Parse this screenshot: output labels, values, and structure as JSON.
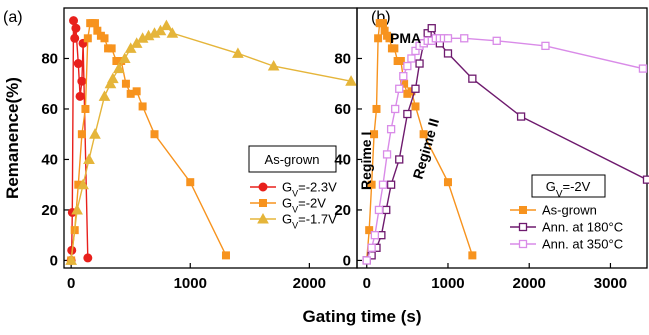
{
  "xlabel": "Gating time (s)",
  "ylabel": "Remanence(%)",
  "chart_data": [
    {
      "type": "line",
      "panel_label": "(a)",
      "xlim": [
        -60,
        2400
      ],
      "ylim": [
        -3,
        100
      ],
      "xticks": [
        0,
        1000,
        2000
      ],
      "yticks": [
        0,
        20,
        40,
        60,
        80
      ],
      "legend_title": "As-grown",
      "series": [
        {
          "name": "G_V=-2.3V",
          "name_sub": "V",
          "name_prefix": "G",
          "name_rest": "=-2.3V",
          "color": "#e8201c",
          "marker": "circle",
          "x": [
            0,
            5,
            10,
            20,
            30,
            40,
            60,
            75,
            90,
            100,
            140
          ],
          "y": [
            0,
            4,
            19,
            95,
            88,
            92,
            78,
            65,
            71,
            86,
            1
          ]
        },
        {
          "name": "G_V=-2V",
          "name_sub": "V",
          "name_prefix": "G",
          "name_rest": "=-2V",
          "color": "#f7931e",
          "marker": "square",
          "x": [
            0,
            30,
            60,
            90,
            120,
            140,
            160,
            180,
            200,
            220,
            250,
            280,
            310,
            340,
            380,
            420,
            460,
            500,
            550,
            600,
            700,
            1000,
            1300
          ],
          "y": [
            0,
            12,
            30,
            50,
            60,
            88,
            94,
            94,
            94,
            91,
            89,
            88,
            84,
            84,
            79,
            79,
            70,
            66,
            67,
            61,
            50,
            31,
            2
          ]
        },
        {
          "name": "G_V=-1.7V",
          "name_sub": "V",
          "name_prefix": "G",
          "name_rest": "=-1.7V",
          "color": "#e5b53a",
          "marker": "triangle",
          "x": [
            0,
            50,
            100,
            150,
            200,
            280,
            330,
            350,
            400,
            450,
            500,
            550,
            600,
            650,
            700,
            750,
            800,
            850,
            1400,
            1700,
            2350
          ],
          "y": [
            0,
            20,
            30,
            40,
            50,
            65,
            70,
            72,
            76,
            80,
            84,
            86,
            88,
            89,
            90,
            91,
            93,
            90,
            82,
            77,
            71
          ]
        }
      ]
    },
    {
      "type": "line",
      "panel_label": "(b)",
      "xlim": [
        -120,
        3450
      ],
      "ylim": [
        -3,
        100
      ],
      "xticks": [
        0,
        1000,
        2000,
        3000
      ],
      "yticks": [
        0,
        20,
        40,
        60,
        80
      ],
      "legend_title": "G_V=-2V",
      "legend_title_prefix": "G",
      "legend_title_sub": "V",
      "legend_title_rest": "=-2V",
      "annotations": [
        "PMA",
        "Regime I",
        "Regime II"
      ],
      "series": [
        {
          "name": "As-grown",
          "color": "#f7931e",
          "marker": "square",
          "x": [
            0,
            30,
            60,
            90,
            120,
            140,
            160,
            180,
            200,
            220,
            250,
            280,
            310,
            340,
            380,
            420,
            460,
            500,
            550,
            600,
            700,
            1000,
            1300
          ],
          "y": [
            0,
            12,
            30,
            50,
            60,
            88,
            94,
            94,
            94,
            91,
            89,
            88,
            84,
            84,
            79,
            79,
            70,
            66,
            67,
            61,
            50,
            31,
            2
          ]
        },
        {
          "name": "Ann. at 180°C",
          "color": "#6e1a6e",
          "marker": "square-open",
          "x": [
            0,
            60,
            120,
            180,
            240,
            300,
            400,
            500,
            600,
            650,
            700,
            750,
            800,
            900,
            1000,
            1300,
            1900,
            3450
          ],
          "y": [
            0,
            2,
            5,
            10,
            20,
            30,
            40,
            58,
            68,
            78,
            86,
            90,
            92,
            86,
            82,
            72,
            57,
            32
          ]
        },
        {
          "name": "Ann. at 350°C",
          "color": "#d98be8",
          "marker": "square-open",
          "x": [
            0,
            60,
            100,
            150,
            200,
            250,
            300,
            350,
            400,
            450,
            500,
            550,
            600,
            650,
            700,
            750,
            800,
            850,
            900,
            950,
            1000,
            1200,
            1600,
            2200,
            3400
          ],
          "y": [
            0,
            5,
            10,
            20,
            30,
            42,
            52,
            60,
            68,
            73,
            77,
            80,
            83,
            85,
            86,
            87,
            87,
            88,
            88,
            88,
            88,
            88,
            87,
            85,
            76
          ]
        }
      ]
    }
  ]
}
